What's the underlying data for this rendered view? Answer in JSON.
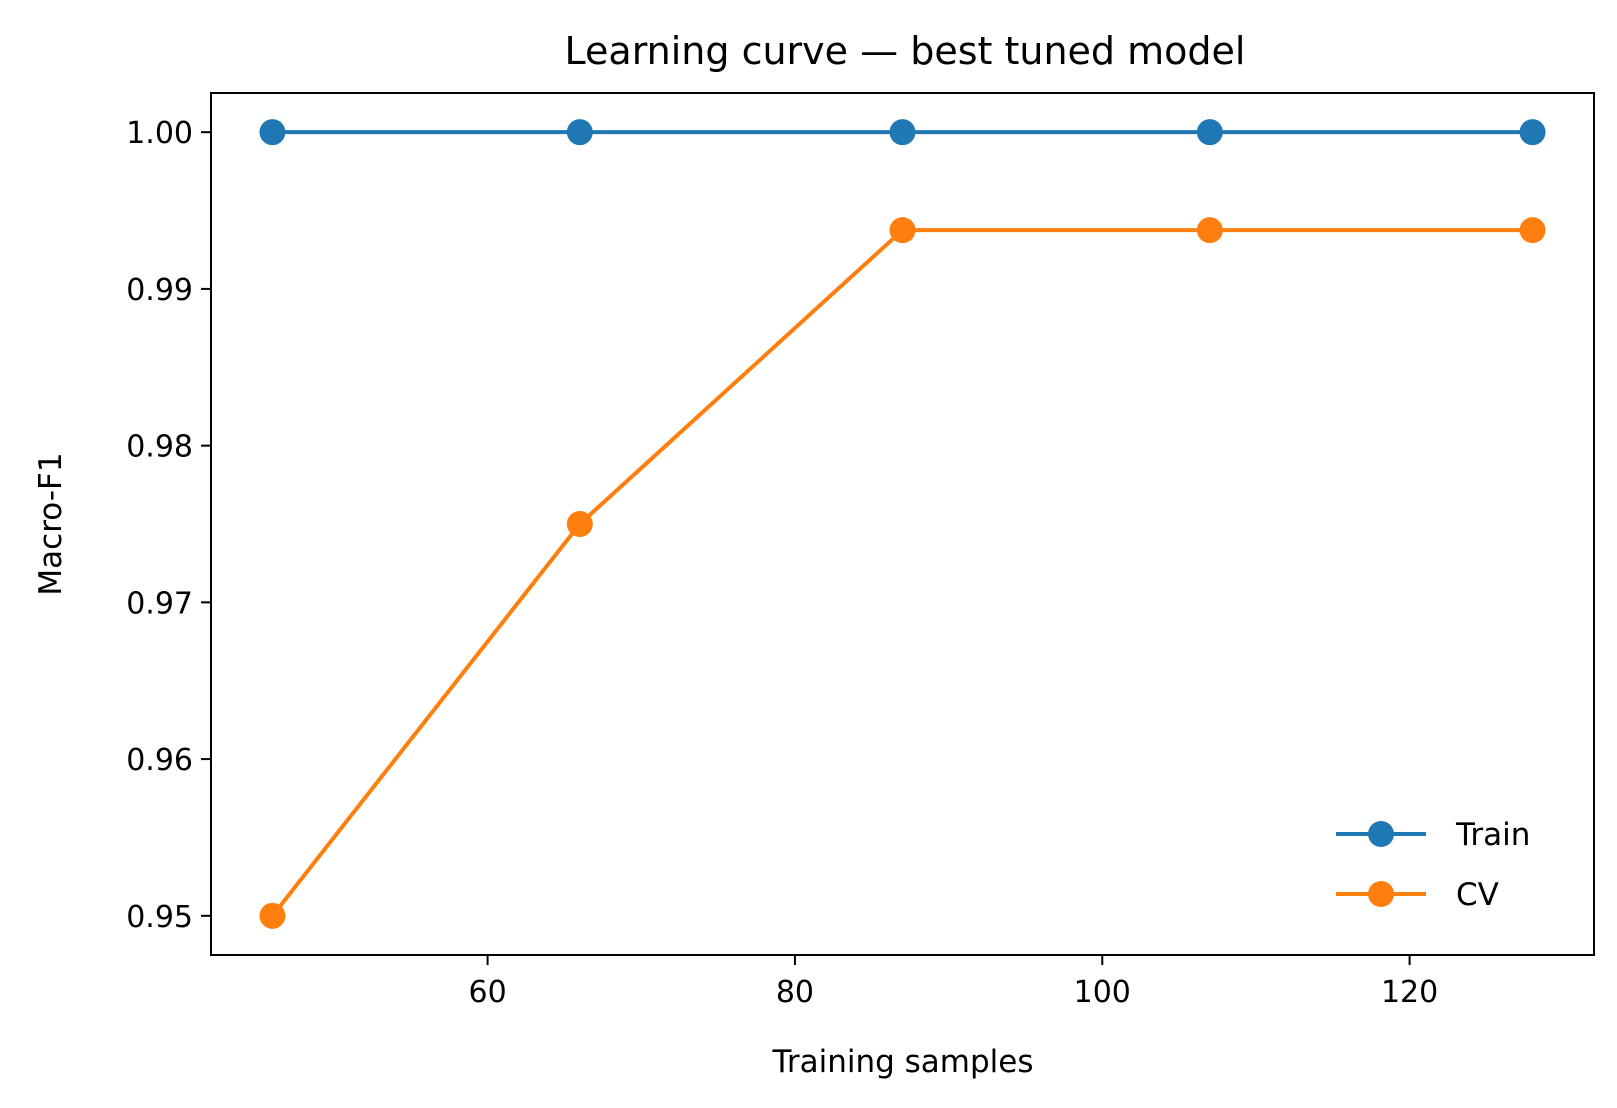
{
  "chart_data": {
    "type": "line",
    "title": "Learning curve — best tuned model",
    "xlabel": "Training samples",
    "ylabel": "Macro-F1",
    "x": [
      46,
      66,
      87,
      107,
      128
    ],
    "series": [
      {
        "name": "Train",
        "color": "#1f77b4",
        "marker": "circle",
        "values": [
          1.0,
          1.0,
          1.0,
          1.0,
          1.0
        ]
      },
      {
        "name": "CV",
        "color": "#ff7f0e",
        "marker": "circle",
        "values": [
          0.95,
          0.975,
          0.99375,
          0.99375,
          0.99375
        ]
      }
    ],
    "xlim": [
      42.0,
      132.0
    ],
    "ylim": [
      0.9475,
      1.0025
    ],
    "xticks": [
      60,
      80,
      100,
      120
    ],
    "xtick_labels": [
      "60",
      "80",
      "100",
      "120"
    ],
    "yticks": [
      0.95,
      0.96,
      0.97,
      0.98,
      0.99,
      1.0
    ],
    "ytick_labels": [
      "0.95",
      "0.96",
      "0.97",
      "0.98",
      "0.99",
      "1.00"
    ],
    "grid": false,
    "legend_position": "lower-right"
  }
}
